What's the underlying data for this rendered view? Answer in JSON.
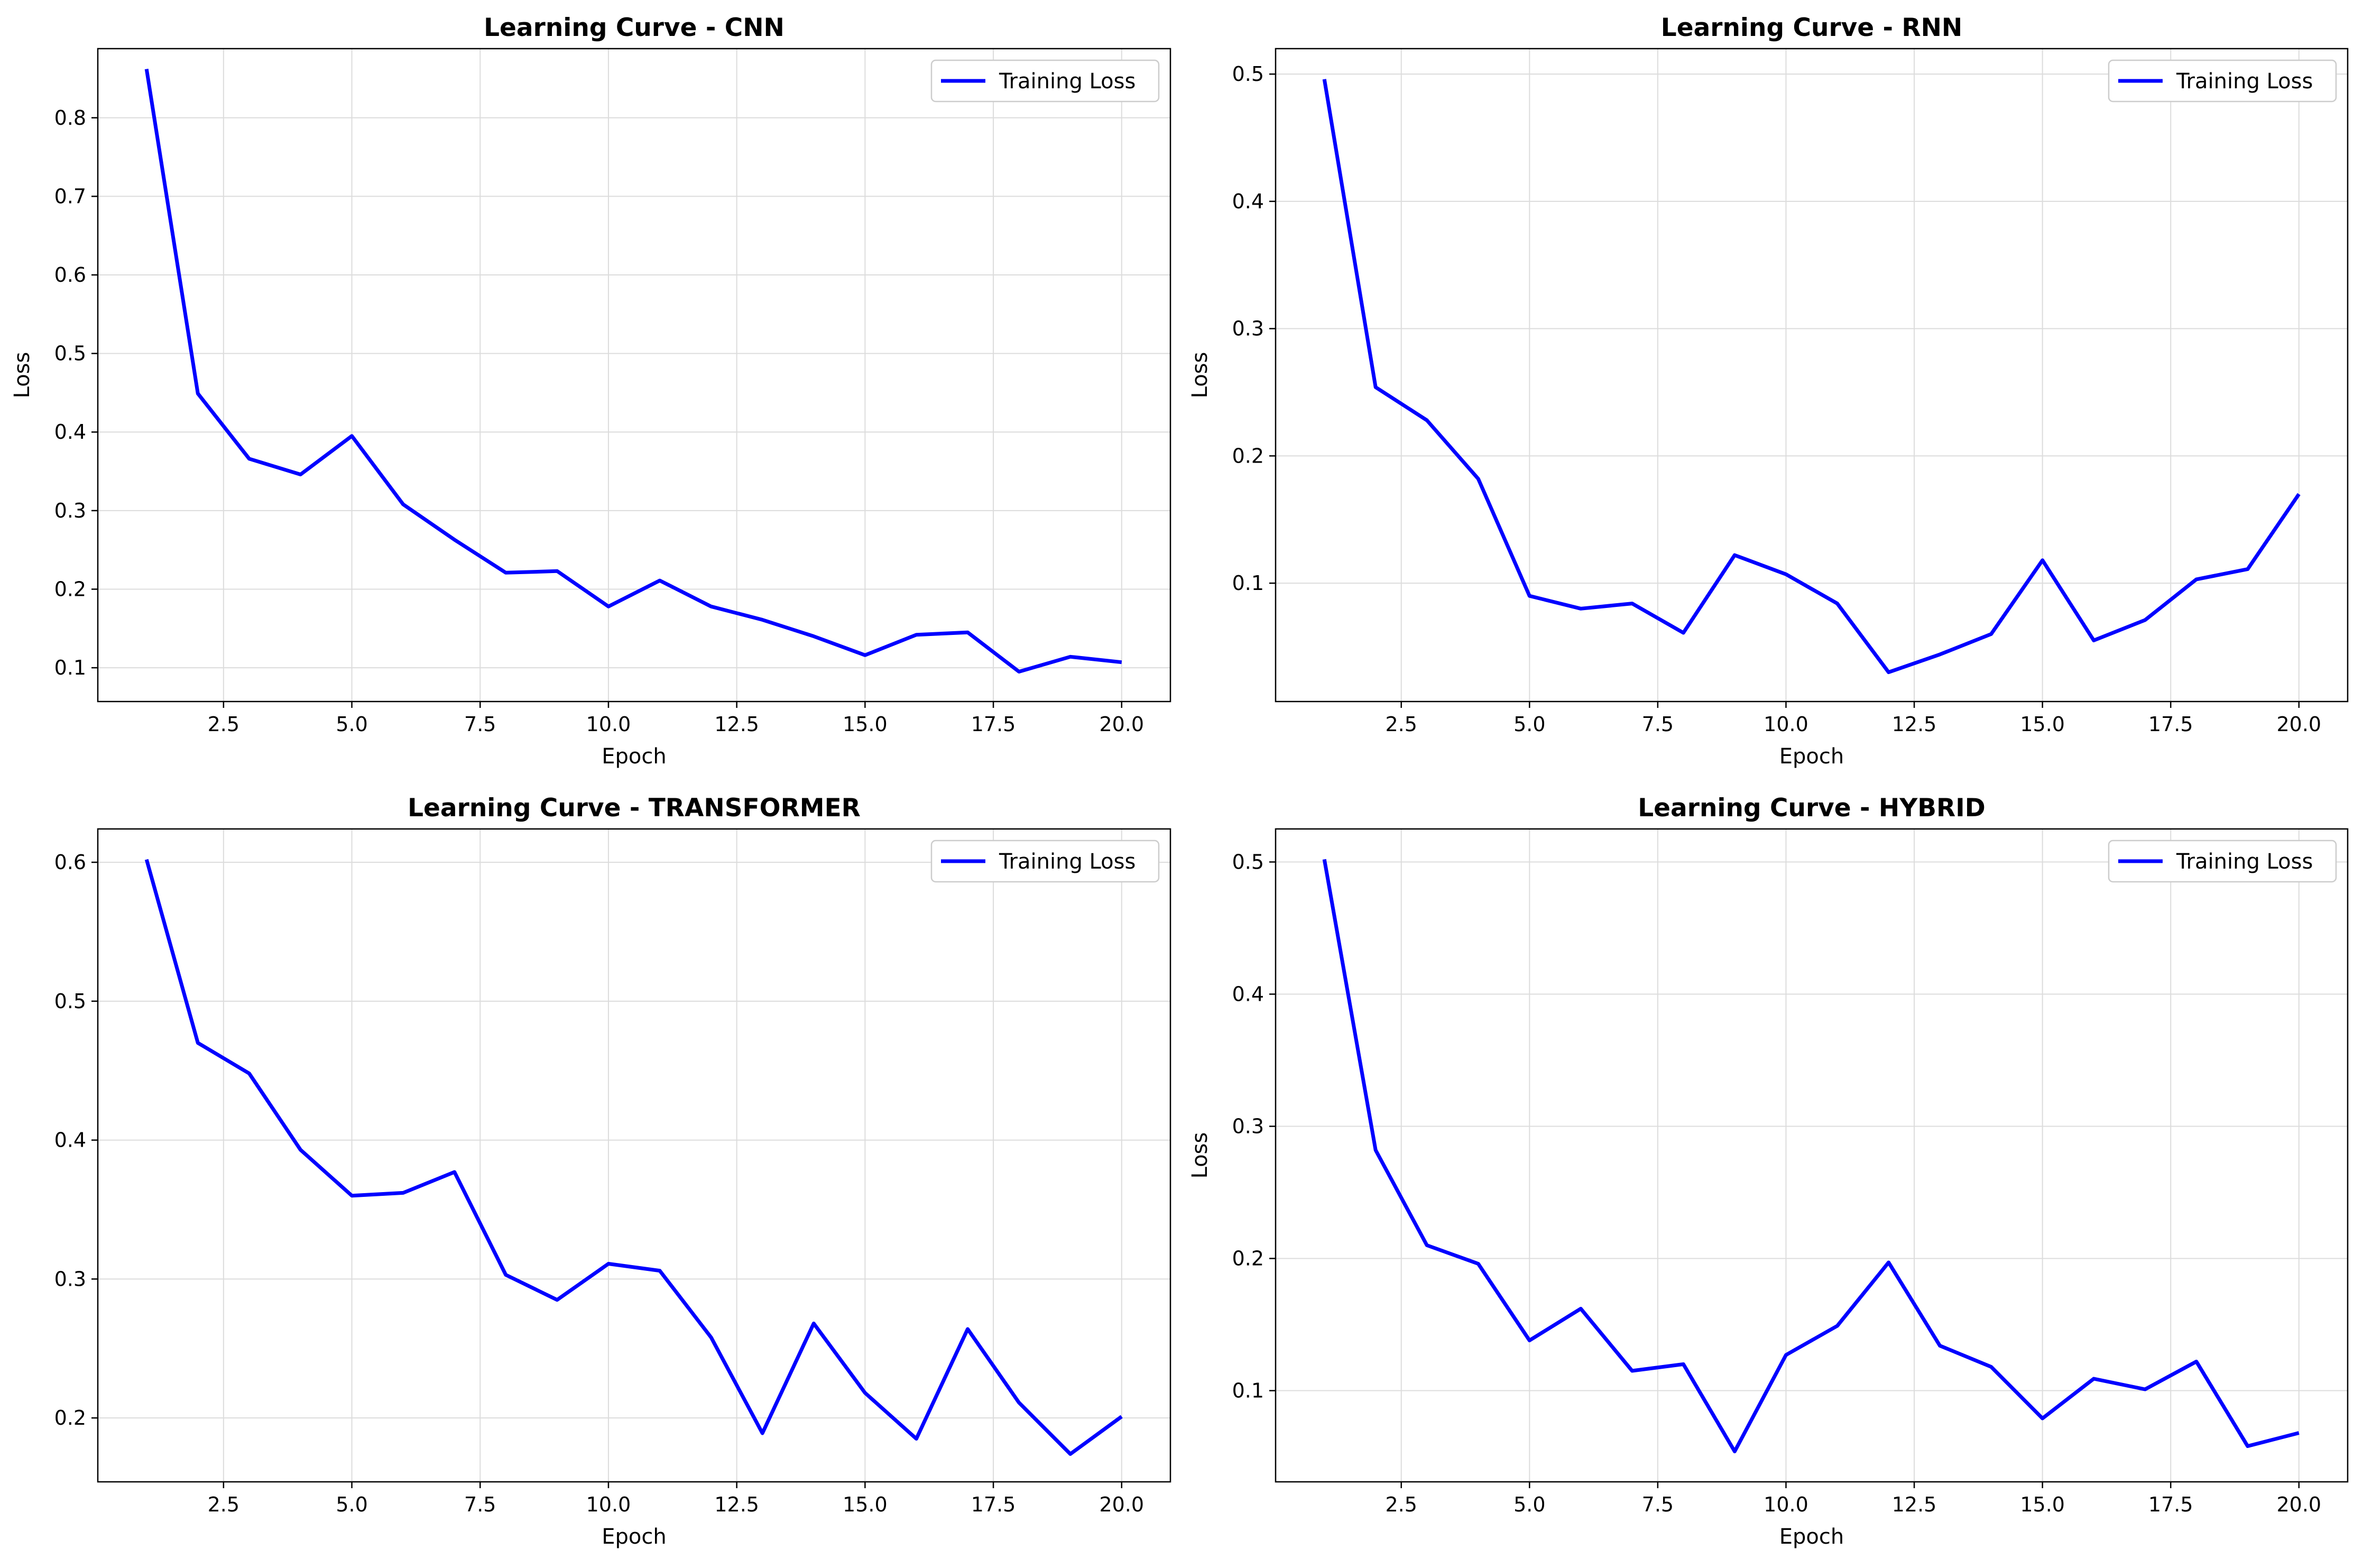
{
  "colors": {
    "line": "#0000ff",
    "grid": "#dcdcdc",
    "axes": "#000000",
    "legend_border": "#cccccc",
    "background": "#ffffff"
  },
  "chart_data": [
    {
      "type": "line",
      "title": "Learning Curve - CNN",
      "xlabel": "Epoch",
      "ylabel": "Loss",
      "xlim": [
        0.05,
        20.95
      ],
      "ylim": [
        0.057,
        0.888
      ],
      "xticks": [
        2.5,
        5.0,
        7.5,
        10.0,
        12.5,
        15.0,
        17.5,
        20.0
      ],
      "xtick_labels": [
        "2.5",
        "5.0",
        "7.5",
        "10.0",
        "12.5",
        "15.0",
        "17.5",
        "20.0"
      ],
      "yticks": [
        0.1,
        0.2,
        0.3,
        0.4,
        0.5,
        0.6,
        0.7,
        0.8
      ],
      "ytick_labels": [
        "0.1",
        "0.2",
        "0.3",
        "0.4",
        "0.5",
        "0.6",
        "0.7",
        "0.8"
      ],
      "grid": true,
      "legend_position": "top-right",
      "series": [
        {
          "name": "Training Loss",
          "x": [
            1,
            2,
            3,
            4,
            5,
            6,
            7,
            8,
            9,
            10,
            11,
            12,
            13,
            14,
            15,
            16,
            17,
            18,
            19,
            20
          ],
          "values": [
            0.862,
            0.449,
            0.366,
            0.346,
            0.395,
            0.308,
            0.263,
            0.221,
            0.223,
            0.178,
            0.211,
            0.178,
            0.161,
            0.14,
            0.116,
            0.142,
            0.145,
            0.095,
            0.114,
            0.107
          ]
        }
      ]
    },
    {
      "type": "line",
      "title": "Learning Curve - RNN",
      "xlabel": "Epoch",
      "ylabel": "Loss",
      "xlim": [
        0.05,
        20.95
      ],
      "ylim": [
        0.007,
        0.52
      ],
      "xticks": [
        2.5,
        5.0,
        7.5,
        10.0,
        12.5,
        15.0,
        17.5,
        20.0
      ],
      "xtick_labels": [
        "2.5",
        "5.0",
        "7.5",
        "10.0",
        "12.5",
        "15.0",
        "17.5",
        "20.0"
      ],
      "yticks": [
        0.1,
        0.2,
        0.3,
        0.4,
        0.5
      ],
      "ytick_labels": [
        "0.1",
        "0.2",
        "0.3",
        "0.4",
        "0.5"
      ],
      "grid": true,
      "legend_position": "top-right",
      "series": [
        {
          "name": "Training Loss",
          "x": [
            1,
            2,
            3,
            4,
            5,
            6,
            7,
            8,
            9,
            10,
            11,
            12,
            13,
            14,
            15,
            16,
            17,
            18,
            19,
            20
          ],
          "values": [
            0.496,
            0.254,
            0.228,
            0.182,
            0.09,
            0.08,
            0.084,
            0.061,
            0.122,
            0.107,
            0.084,
            0.03,
            0.044,
            0.06,
            0.118,
            0.055,
            0.071,
            0.103,
            0.111,
            0.17
          ]
        }
      ]
    },
    {
      "type": "line",
      "title": "Learning Curve - TRANSFORMER",
      "xlabel": "Epoch",
      "ylabel": "",
      "xlim": [
        0.05,
        20.95
      ],
      "ylim": [
        0.154,
        0.624
      ],
      "xticks": [
        2.5,
        5.0,
        7.5,
        10.0,
        12.5,
        15.0,
        17.5,
        20.0
      ],
      "xtick_labels": [
        "2.5",
        "5.0",
        "7.5",
        "10.0",
        "12.5",
        "15.0",
        "17.5",
        "20.0"
      ],
      "yticks": [
        0.2,
        0.3,
        0.4,
        0.5,
        0.6
      ],
      "ytick_labels": [
        "0.2",
        "0.3",
        "0.4",
        "0.5",
        "0.6"
      ],
      "grid": true,
      "legend_position": "top-right",
      "series": [
        {
          "name": "Training Loss",
          "x": [
            1,
            2,
            3,
            4,
            5,
            6,
            7,
            8,
            9,
            10,
            11,
            12,
            13,
            14,
            15,
            16,
            17,
            18,
            19,
            20
          ],
          "values": [
            0.602,
            0.47,
            0.448,
            0.393,
            0.36,
            0.362,
            0.377,
            0.303,
            0.285,
            0.311,
            0.306,
            0.258,
            0.189,
            0.268,
            0.218,
            0.185,
            0.264,
            0.211,
            0.174,
            0.201
          ]
        }
      ]
    },
    {
      "type": "line",
      "title": "Learning Curve - HYBRID",
      "xlabel": "Epoch",
      "ylabel": "Loss",
      "xlim": [
        0.05,
        20.95
      ],
      "ylim": [
        0.031,
        0.525
      ],
      "xticks": [
        2.5,
        5.0,
        7.5,
        10.0,
        12.5,
        15.0,
        17.5,
        20.0
      ],
      "xtick_labels": [
        "2.5",
        "5.0",
        "7.5",
        "10.0",
        "12.5",
        "15.0",
        "17.5",
        "20.0"
      ],
      "yticks": [
        0.1,
        0.2,
        0.3,
        0.4,
        0.5
      ],
      "ytick_labels": [
        "0.1",
        "0.2",
        "0.3",
        "0.4",
        "0.5"
      ],
      "grid": true,
      "legend_position": "top-right",
      "series": [
        {
          "name": "Training Loss",
          "x": [
            1,
            2,
            3,
            4,
            5,
            6,
            7,
            8,
            9,
            10,
            11,
            12,
            13,
            14,
            15,
            16,
            17,
            18,
            19,
            20
          ],
          "values": [
            0.502,
            0.282,
            0.21,
            0.196,
            0.138,
            0.162,
            0.115,
            0.12,
            0.054,
            0.127,
            0.149,
            0.197,
            0.134,
            0.118,
            0.079,
            0.109,
            0.101,
            0.122,
            0.058,
            0.068
          ]
        }
      ]
    }
  ]
}
